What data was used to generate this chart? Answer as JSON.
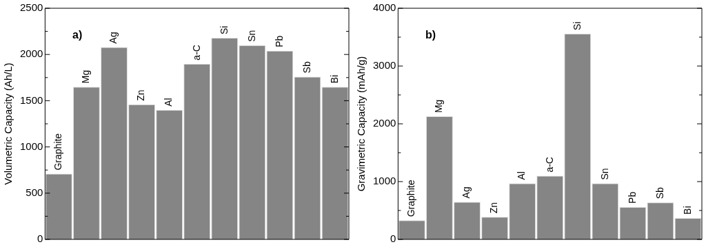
{
  "chart_data": [
    {
      "type": "bar",
      "ylabel": "Volumetric Capacity (Ah/L)",
      "annotations": [
        "a)"
      ],
      "categories": [
        "Graphite",
        "Mg",
        "Ag",
        "Zn",
        "Al",
        "a-C",
        "Si",
        "Sn",
        "Pb",
        "Sb",
        "Bi"
      ],
      "color": "#858585",
      "values": [
        710,
        1650,
        2080,
        1460,
        1400,
        1900,
        2180,
        2100,
        2040,
        1760,
        1650
      ],
      "ylim": [
        0,
        2500
      ],
      "yticks": [
        0,
        {
          "value": 250,
          "label": null
        },
        500,
        {
          "value": 750,
          "label": null
        },
        1000,
        {
          "value": 1250,
          "label": null
        },
        1500,
        {
          "value": 1750,
          "label": null
        },
        2000,
        {
          "value": 2250,
          "label": null
        },
        2500
      ],
      "grid": false,
      "tick_labels": "y"
    },
    {
      "type": "bar",
      "ylabel": "Gravimetric Capacity (mAh/g)",
      "annotations": [
        "b)"
      ],
      "categories": [
        "Graphite",
        "Mg",
        "Ag",
        "Zn",
        "Al",
        "a-C",
        "Si",
        "Sn",
        "Pb",
        "Sb",
        "Bi"
      ],
      "color": "#858585",
      "values": [
        330,
        2130,
        650,
        390,
        970,
        1100,
        3560,
        970,
        560,
        640,
        370
      ],
      "ylim": [
        0,
        4000
      ],
      "yticks": [
        0,
        {
          "value": 500,
          "label": null
        },
        1000,
        {
          "value": 1500,
          "label": null
        },
        2000,
        {
          "value": 2500,
          "label": null
        },
        3000,
        {
          "value": 3500,
          "label": null
        },
        4000
      ],
      "grid": false,
      "tick_labels": "y"
    }
  ]
}
